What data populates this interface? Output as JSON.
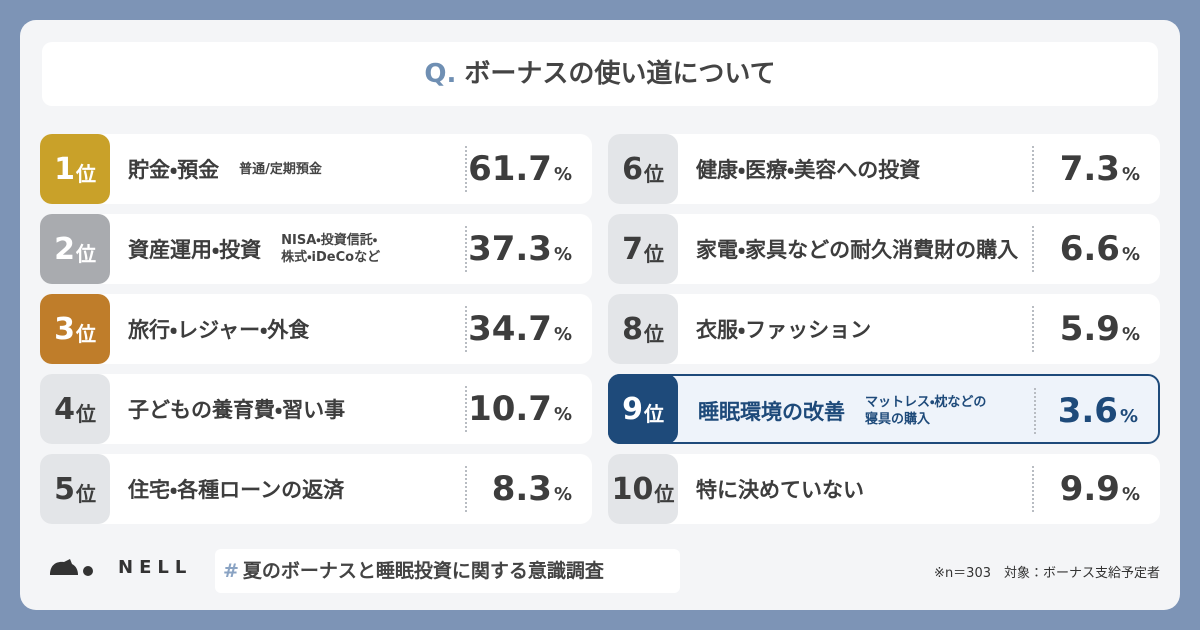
{
  "header": {
    "title_prefix": "Q.",
    "title": "ボーナスの使い道について"
  },
  "rank_suffix": "位",
  "unit": "%",
  "highlight_rank": 9,
  "items": [
    {
      "rank": 1,
      "label": "貯金・預金",
      "note": [
        "普通/定期預金"
      ],
      "value": 61.7
    },
    {
      "rank": 2,
      "label": "資産運用・投資",
      "note": [
        "NISA・投資信託・",
        "株式・iDeCoなど"
      ],
      "value": 37.3
    },
    {
      "rank": 3,
      "label": "旅行・レジャー・外食",
      "note": [],
      "value": 34.7
    },
    {
      "rank": 4,
      "label": "子どもの養育費・習い事",
      "note": [],
      "value": 10.7
    },
    {
      "rank": 5,
      "label": "住宅・各種ローンの返済",
      "note": [],
      "value": 8.3
    },
    {
      "rank": 6,
      "label": "健康・医療・美容への投資",
      "note": [],
      "value": 7.3
    },
    {
      "rank": 7,
      "label": "家電・家具などの耐久消費財の購入",
      "note": [],
      "value": 6.6
    },
    {
      "rank": 8,
      "label": "衣服・ファッション",
      "note": [],
      "value": 5.9
    },
    {
      "rank": 9,
      "label": "睡眠環境の改善",
      "note": [
        "マットレス・枕などの",
        "寝具の購入"
      ],
      "value": 3.6
    },
    {
      "rank": 10,
      "label": "特に決めていない",
      "note": [],
      "value": 9.9
    }
  ],
  "footer": {
    "brand": "NELL",
    "hashtag_mark": "#",
    "hashtag": "夏のボーナスと睡眠投資に関する意識調査",
    "note": "※n＝303　対象：ボーナス支給予定者"
  }
}
